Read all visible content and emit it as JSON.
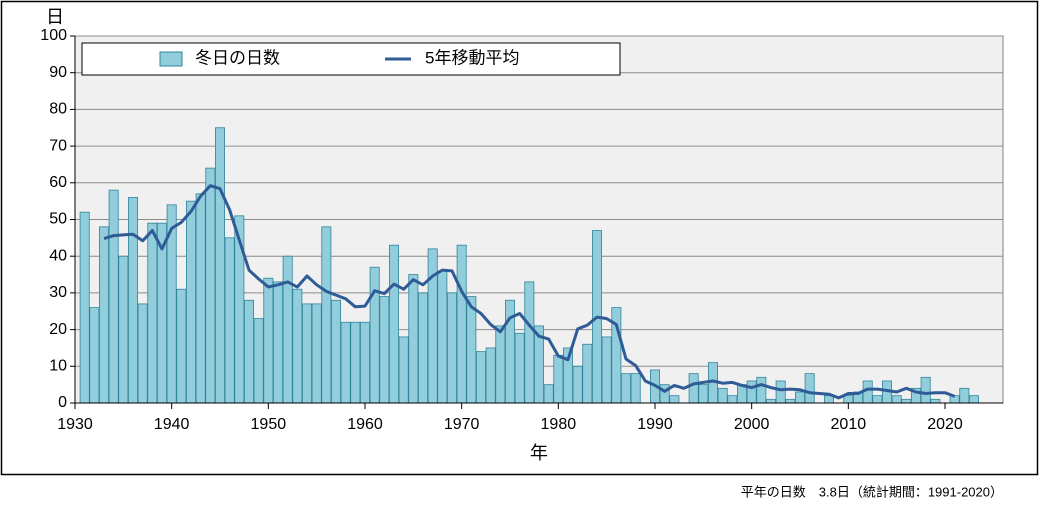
{
  "chart_data": {
    "type": "bar",
    "ylabel": "日",
    "xlabel": "年",
    "note": "平年の日数　3.8日（統計期間：1991-2020）",
    "xlim": [
      1930,
      2026
    ],
    "xticks": [
      1930,
      1940,
      1950,
      1960,
      1970,
      1980,
      1990,
      2000,
      2010,
      2020
    ],
    "ylim": [
      0,
      100
    ],
    "yticks": [
      0,
      10,
      20,
      30,
      40,
      50,
      60,
      70,
      80,
      90,
      100
    ],
    "grid": true,
    "legend": "top-left",
    "series": [
      {
        "name": "冬日の日数",
        "type": "bar",
        "color": "#92cddc",
        "edge": "#31849b",
        "x": [
          1931,
          1932,
          1933,
          1934,
          1935,
          1936,
          1937,
          1938,
          1939,
          1940,
          1941,
          1942,
          1943,
          1944,
          1945,
          1946,
          1947,
          1948,
          1949,
          1950,
          1951,
          1952,
          1953,
          1954,
          1955,
          1956,
          1957,
          1958,
          1959,
          1960,
          1961,
          1962,
          1963,
          1964,
          1965,
          1966,
          1967,
          1968,
          1969,
          1970,
          1971,
          1972,
          1973,
          1974,
          1975,
          1976,
          1977,
          1978,
          1979,
          1980,
          1981,
          1982,
          1983,
          1984,
          1985,
          1986,
          1987,
          1988,
          1989,
          1990,
          1991,
          1992,
          1993,
          1994,
          1995,
          1996,
          1997,
          1998,
          1999,
          2000,
          2001,
          2002,
          2003,
          2004,
          2005,
          2006,
          2007,
          2008,
          2009,
          2010,
          2011,
          2012,
          2013,
          2014,
          2015,
          2016,
          2017,
          2018,
          2019,
          2020,
          2021,
          2022,
          2023
        ],
        "values": [
          52,
          26,
          48,
          58,
          40,
          56,
          27,
          49,
          49,
          54,
          31,
          55,
          57,
          64,
          75,
          45,
          51,
          28,
          23,
          34,
          33,
          40,
          31,
          27,
          27,
          48,
          28,
          22,
          22,
          22,
          37,
          29,
          43,
          18,
          35,
          30,
          42,
          36,
          30,
          43,
          29,
          14,
          15,
          21,
          28,
          19,
          33,
          21,
          5,
          13,
          15,
          10,
          16,
          47,
          18,
          26,
          8,
          8,
          0,
          9,
          5,
          2,
          0,
          8,
          5,
          11,
          4,
          2,
          5,
          6,
          7,
          1,
          6,
          1,
          3,
          8,
          0,
          2,
          0,
          2,
          3,
          6,
          2,
          6,
          2,
          1,
          4,
          7,
          1,
          0,
          2,
          4,
          2
        ]
      },
      {
        "name": "5年移動平均",
        "type": "line",
        "color": "#2f5b96",
        "x": [
          1933,
          1934,
          1935,
          1936,
          1937,
          1938,
          1939,
          1940,
          1941,
          1942,
          1943,
          1944,
          1945,
          1946,
          1947,
          1948,
          1949,
          1950,
          1951,
          1952,
          1953,
          1954,
          1955,
          1956,
          1957,
          1958,
          1959,
          1960,
          1961,
          1962,
          1963,
          1964,
          1965,
          1966,
          1967,
          1968,
          1969,
          1970,
          1971,
          1972,
          1973,
          1974,
          1975,
          1976,
          1977,
          1978,
          1979,
          1980,
          1981,
          1982,
          1983,
          1984,
          1985,
          1986,
          1987,
          1988,
          1989,
          1990,
          1991,
          1992,
          1993,
          1994,
          1995,
          1996,
          1997,
          1998,
          1999,
          2000,
          2001,
          2002,
          2003,
          2004,
          2005,
          2006,
          2007,
          2008,
          2009,
          2010,
          2011,
          2012,
          2013,
          2014,
          2015,
          2016,
          2017,
          2018,
          2019,
          2020,
          2021
        ],
        "values": [
          44.8,
          45.6,
          45.8,
          46,
          44.2,
          47,
          42,
          47.6,
          49.2,
          52.2,
          56.4,
          59.2,
          58.4,
          52.6,
          44.4,
          36.2,
          33.8,
          31.6,
          32.2,
          33,
          31.6,
          34.6,
          32.2,
          30.4,
          29.4,
          28.4,
          26.2,
          26.4,
          30.6,
          29.8,
          32.4,
          31,
          33.6,
          32.2,
          34.6,
          36.2,
          36,
          30.4,
          26.2,
          24.4,
          21.4,
          19.4,
          23.2,
          24.4,
          21.2,
          18.2,
          17.4,
          12.8,
          11.8,
          20.2,
          21.2,
          23.4,
          23,
          21.4,
          12,
          10.2,
          6,
          4.8,
          3.2,
          4.8,
          4,
          5.2,
          5.6,
          6,
          5.4,
          5.6,
          4.8,
          4.2,
          5,
          4.2,
          3.6,
          3.8,
          3.6,
          2.8,
          2.6,
          2.4,
          1.4,
          2.6,
          2.6,
          3.8,
          3.8,
          3.4,
          3,
          4,
          3,
          2.6,
          2.8,
          2.8,
          1.8
        ]
      }
    ]
  }
}
